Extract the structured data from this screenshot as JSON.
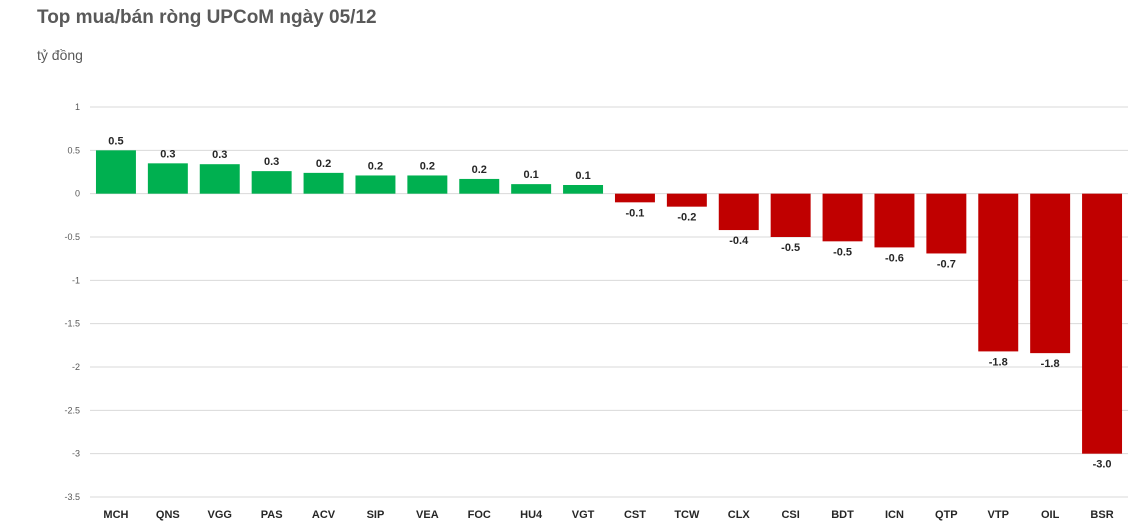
{
  "title": "Top mua/bán ròng UPCoM ngày 05/12",
  "unit": "tỷ đồng",
  "colors": {
    "positive": "#00b050",
    "negative": "#c00000",
    "grid": "#d9d9d9"
  },
  "chart_data": {
    "type": "bar",
    "title": "Top mua/bán ròng UPCoM ngày 05/12",
    "ylabel": "tỷ đồng",
    "ylim": [
      -3.5,
      1
    ],
    "yticks": [
      1,
      0.5,
      0,
      -0.5,
      -1,
      -1.5,
      -2,
      -2.5,
      -3,
      -3.5
    ],
    "grid": true,
    "categories": [
      "MCH",
      "QNS",
      "VGG",
      "PAS",
      "ACV",
      "SIP",
      "VEA",
      "FOC",
      "HU4",
      "VGT",
      "CST",
      "TCW",
      "CLX",
      "CSI",
      "BDT",
      "ICN",
      "QTP",
      "VTP",
      "OIL",
      "BSR"
    ],
    "values": [
      0.5,
      0.35,
      0.34,
      0.26,
      0.24,
      0.21,
      0.21,
      0.17,
      0.11,
      0.1,
      -0.1,
      -0.15,
      -0.42,
      -0.5,
      -0.55,
      -0.62,
      -0.69,
      -1.82,
      -1.84,
      -3.0
    ],
    "data_labels": [
      "0.5",
      "0.3",
      "0.3",
      "0.3",
      "0.2",
      "0.2",
      "0.2",
      "0.2",
      "0.1",
      "0.1",
      "-0.1",
      "-0.2",
      "-0.4",
      "-0.5",
      "-0.5",
      "-0.6",
      "-0.7",
      "-1.8",
      "-1.8",
      "-3.0"
    ]
  }
}
